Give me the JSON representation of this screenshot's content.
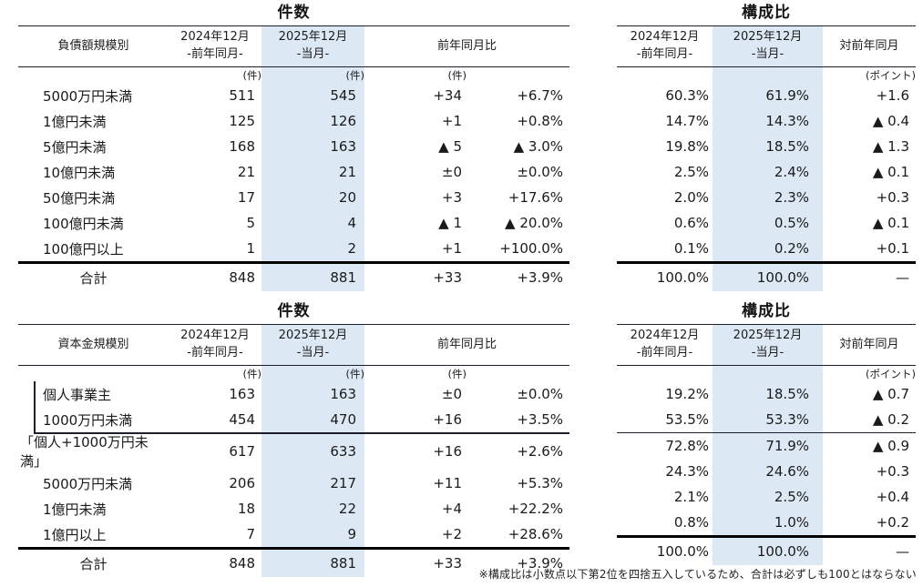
{
  "titles": {
    "count": "件数",
    "ratio": "構成比"
  },
  "headers": {
    "prev_line1": "2024年12月",
    "prev_line2": "-前年同月-",
    "cur_line1": "2025年12月",
    "cur_line2": "-当月-",
    "yoy": "前年同月比",
    "vs_prev_year": "対前年同月",
    "unit_count": "(件)",
    "unit_point": "(ポイント)"
  },
  "colors": {
    "highlight": "#dce9f5",
    "line": "#1a1f29",
    "text": "#1a1a1a"
  },
  "debt_count": {
    "label_header": "負債額規模別",
    "rows": [
      {
        "label": "5000万円未満",
        "prev": "511",
        "cur": "545",
        "diff": "+34",
        "pct": "+6.7%"
      },
      {
        "label": "1億円未満",
        "prev": "125",
        "cur": "126",
        "diff": "+1",
        "pct": "+0.8%"
      },
      {
        "label": "5億円未満",
        "prev": "168",
        "cur": "163",
        "diff": "▲ 5",
        "pct": "▲ 3.0%"
      },
      {
        "label": "10億円未満",
        "prev": "21",
        "cur": "21",
        "diff": "±0",
        "pct": "±0.0%"
      },
      {
        "label": "50億円未満",
        "prev": "17",
        "cur": "20",
        "diff": "+3",
        "pct": "+17.6%"
      },
      {
        "label": "100億円未満",
        "prev": "5",
        "cur": "4",
        "diff": "▲ 1",
        "pct": "▲ 20.0%"
      },
      {
        "label": "100億円以上",
        "prev": "1",
        "cur": "2",
        "diff": "+1",
        "pct": "+100.0%"
      }
    ],
    "total": {
      "label": "合計",
      "prev": "848",
      "cur": "881",
      "diff": "+33",
      "pct": "+3.9%"
    }
  },
  "debt_ratio": {
    "rows": [
      {
        "prev": "60.3%",
        "cur": "61.9%",
        "diff": "+1.6"
      },
      {
        "prev": "14.7%",
        "cur": "14.3%",
        "diff": "▲ 0.4"
      },
      {
        "prev": "19.8%",
        "cur": "18.5%",
        "diff": "▲ 1.3"
      },
      {
        "prev": "2.5%",
        "cur": "2.4%",
        "diff": "▲ 0.1"
      },
      {
        "prev": "2.0%",
        "cur": "2.3%",
        "diff": "+0.3"
      },
      {
        "prev": "0.6%",
        "cur": "0.5%",
        "diff": "▲ 0.1"
      },
      {
        "prev": "0.1%",
        "cur": "0.2%",
        "diff": "+0.1"
      }
    ],
    "total": {
      "prev": "100.0%",
      "cur": "100.0%",
      "diff": "—"
    }
  },
  "capital_count": {
    "label_header": "資本金規模別",
    "rows": [
      {
        "label": "個人事業主",
        "prev": "163",
        "cur": "163",
        "diff": "±0",
        "pct": "±0.0%"
      },
      {
        "label": "1000万円未満",
        "prev": "454",
        "cur": "470",
        "diff": "+16",
        "pct": "+3.5%"
      },
      {
        "label": "「個人+1000万円未満」",
        "prev": "617",
        "cur": "633",
        "diff": "+16",
        "pct": "+2.6%",
        "flush": true
      },
      {
        "label": "5000万円未満",
        "prev": "206",
        "cur": "217",
        "diff": "+11",
        "pct": "+5.3%"
      },
      {
        "label": "1億円未満",
        "prev": "18",
        "cur": "22",
        "diff": "+4",
        "pct": "+22.2%"
      },
      {
        "label": "1億円以上",
        "prev": "7",
        "cur": "9",
        "diff": "+2",
        "pct": "+28.6%"
      }
    ],
    "total": {
      "label": "合計",
      "prev": "848",
      "cur": "881",
      "diff": "+33",
      "pct": "+3.9%"
    }
  },
  "capital_ratio": {
    "rows": [
      {
        "prev": "19.2%",
        "cur": "18.5%",
        "diff": "▲ 0.7"
      },
      {
        "prev": "53.5%",
        "cur": "53.3%",
        "diff": "▲ 0.2",
        "sep": true
      },
      {
        "prev": "72.8%",
        "cur": "71.9%",
        "diff": "▲ 0.9"
      },
      {
        "prev": "24.3%",
        "cur": "24.6%",
        "diff": "+0.3"
      },
      {
        "prev": "2.1%",
        "cur": "2.5%",
        "diff": "+0.4"
      },
      {
        "prev": "0.8%",
        "cur": "1.0%",
        "diff": "+0.2"
      }
    ],
    "total": {
      "prev": "100.0%",
      "cur": "100.0%",
      "diff": "—"
    }
  },
  "footnote": "※構成比は小数点以下第2位を四捨五入しているため、合計は必ずしも100とはならない"
}
